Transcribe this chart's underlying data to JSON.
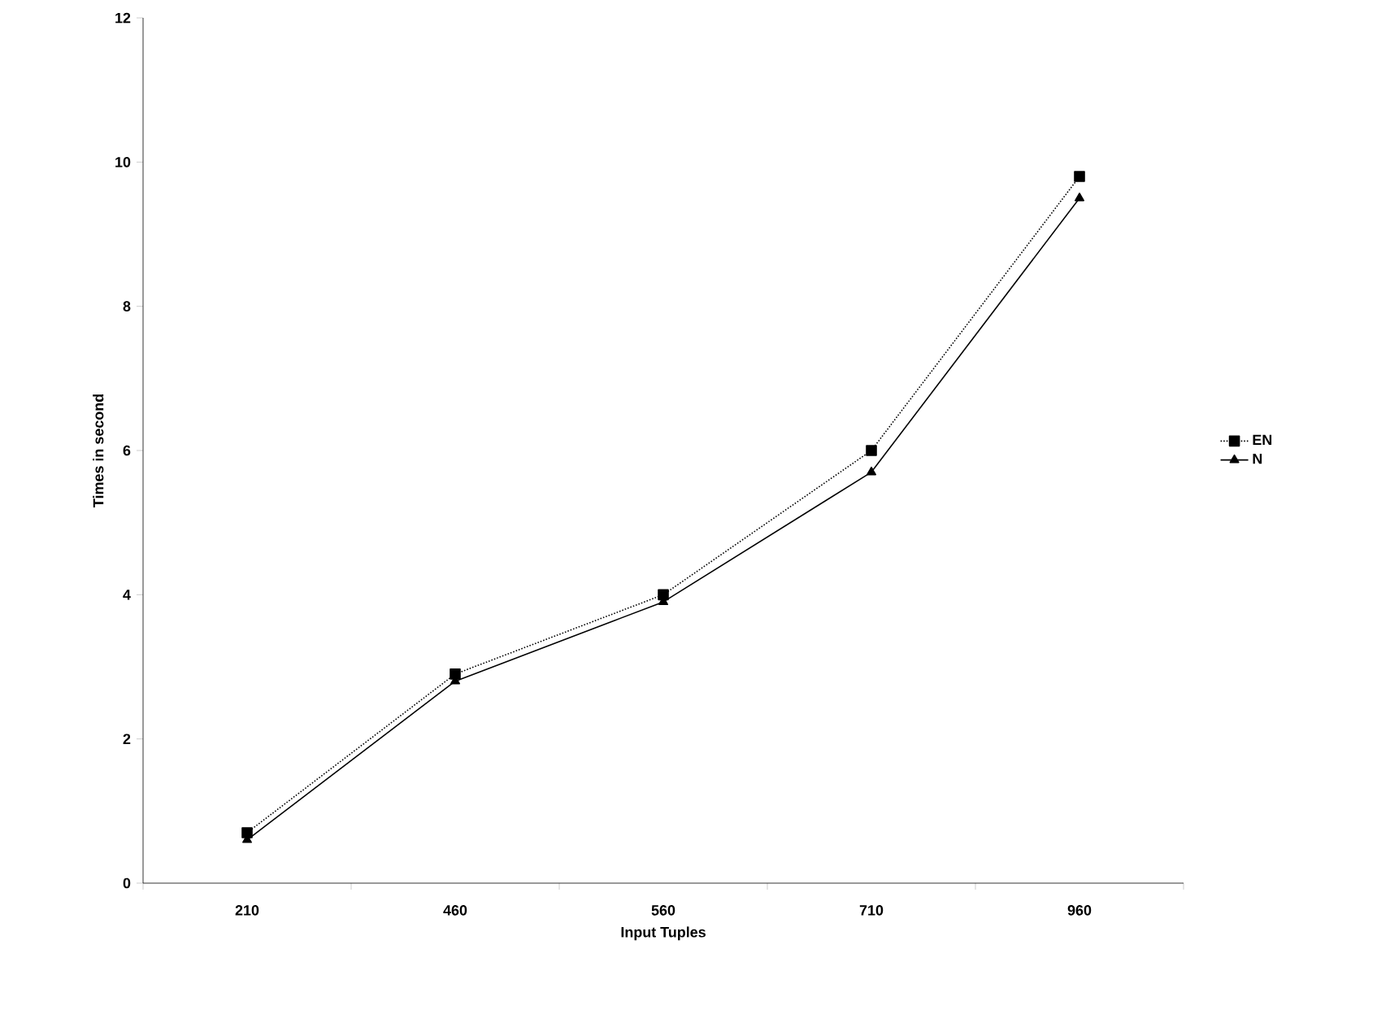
{
  "chart_data": {
    "type": "line",
    "xlabel": "Input Tuples",
    "ylabel": "Times in second",
    "categories": [
      "210",
      "460",
      "560",
      "710",
      "960"
    ],
    "series": [
      {
        "name": "EN",
        "color": "#000000",
        "marker": "square",
        "line_style": "dotted",
        "values": [
          0.7,
          2.9,
          4.0,
          6.0,
          9.8
        ]
      },
      {
        "name": "N",
        "color": "#000000",
        "marker": "triangle",
        "line_style": "solid",
        "values": [
          0.6,
          2.8,
          3.9,
          5.7,
          9.5
        ]
      }
    ],
    "ylim": [
      0,
      12
    ],
    "yticks": [
      0,
      2,
      4,
      6,
      8,
      10,
      12
    ],
    "grid": false,
    "legend": "right"
  }
}
